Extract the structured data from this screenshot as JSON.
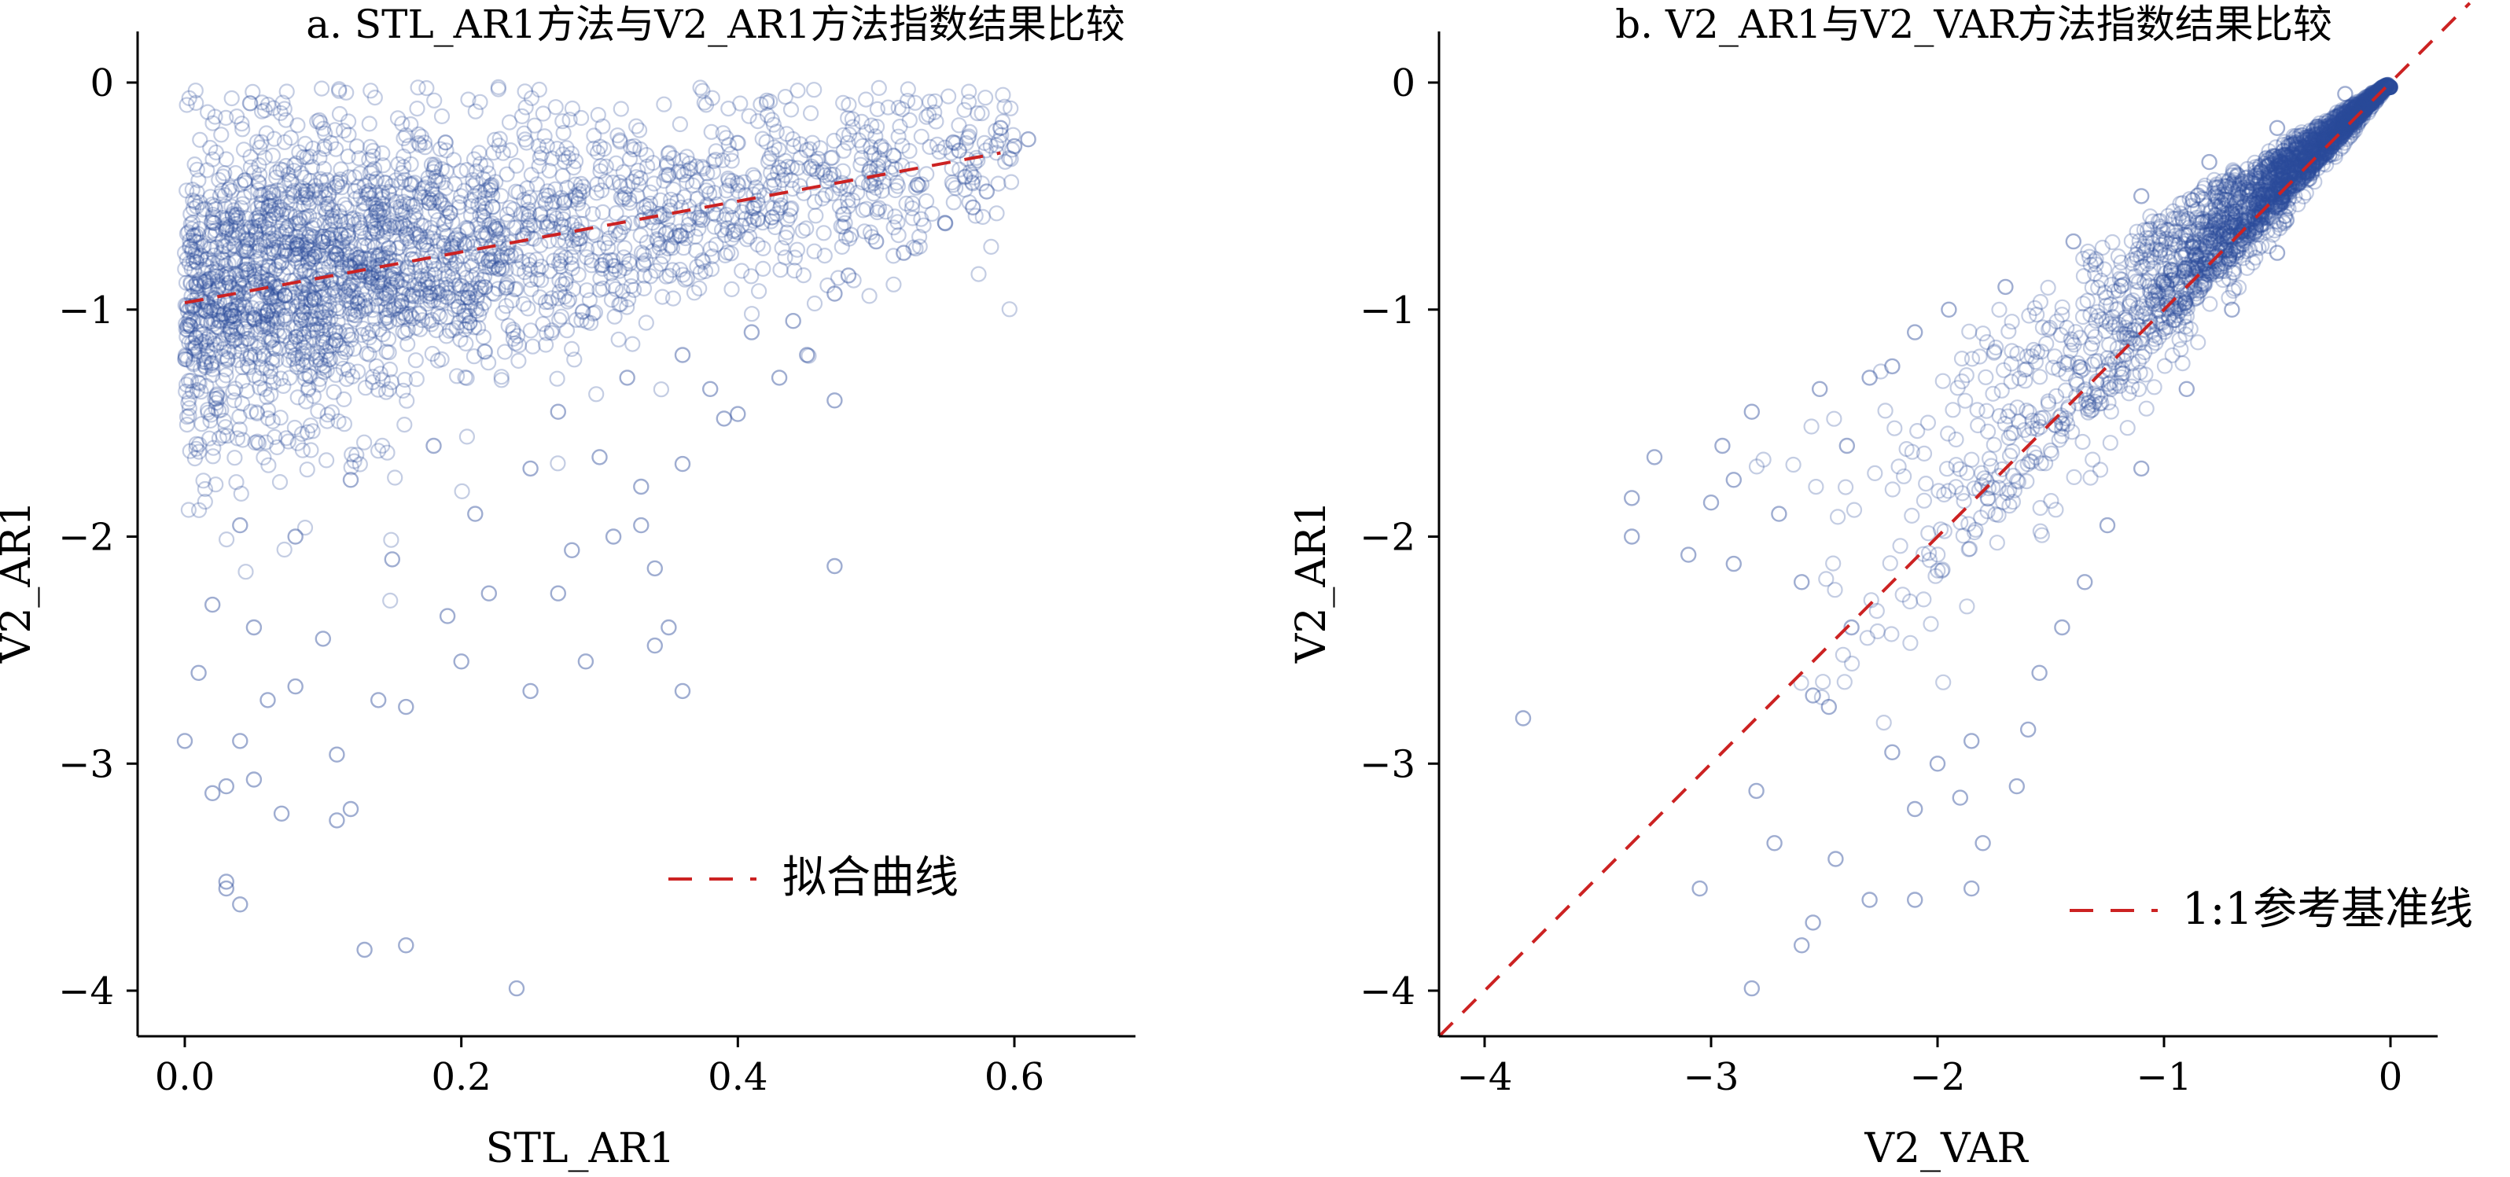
{
  "chart_data": [
    {
      "type": "scatter",
      "title": "a. STL_AR1方法与V2_AR1方法指数结果比较",
      "xlabel": "STL_AR1",
      "ylabel": "V2_AR1",
      "xlim": [
        -0.04,
        0.68
      ],
      "ylim": [
        -4.2,
        0.2
      ],
      "xticks": [
        0.0,
        0.2,
        0.4,
        0.6
      ],
      "xtick_labels": [
        "0.0",
        "0.2",
        "0.4",
        "0.6"
      ],
      "yticks": [
        0,
        -1,
        -2,
        -3,
        -4
      ],
      "ytick_labels": [
        "0",
        "−1",
        "−2",
        "−3",
        "−4"
      ],
      "grid": false,
      "legend_position": "lower-right",
      "marker": "hollow-circle",
      "marker_color": "#2a4a9a",
      "density_note": "dense cloud concentrated in x 0.0–0.45, y 0 to −1.6",
      "fit_line": {
        "label": "拟合曲线",
        "color": "#cc2222",
        "style": "dashed",
        "x": [
          0.0,
          0.59
        ],
        "y": [
          -0.97,
          -0.31
        ]
      },
      "points": [
        [
          0.03,
          -3.52
        ],
        [
          0.04,
          -3.62
        ],
        [
          0.03,
          -3.55
        ],
        [
          0.13,
          -3.82
        ],
        [
          0.16,
          -3.8
        ],
        [
          0.24,
          -3.99
        ],
        [
          0.02,
          -3.13
        ],
        [
          0.03,
          -3.1
        ],
        [
          0.05,
          -3.07
        ],
        [
          0.07,
          -3.22
        ],
        [
          0.11,
          -3.25
        ],
        [
          0.12,
          -3.2
        ],
        [
          0.04,
          -2.9
        ],
        [
          0.0,
          -2.9
        ],
        [
          0.11,
          -2.96
        ],
        [
          0.36,
          -2.68
        ],
        [
          0.25,
          -2.68
        ],
        [
          0.14,
          -2.72
        ],
        [
          0.01,
          -2.6
        ],
        [
          0.06,
          -2.72
        ],
        [
          0.08,
          -2.66
        ],
        [
          0.16,
          -2.75
        ],
        [
          0.2,
          -2.55
        ],
        [
          0.29,
          -2.55
        ],
        [
          0.34,
          -2.48
        ],
        [
          0.35,
          -2.4
        ],
        [
          0.27,
          -2.25
        ],
        [
          0.28,
          -2.06
        ],
        [
          0.31,
          -2.0
        ],
        [
          0.34,
          -2.14
        ],
        [
          0.47,
          -2.13
        ],
        [
          0.22,
          -2.25
        ],
        [
          0.19,
          -2.35
        ],
        [
          0.1,
          -2.45
        ],
        [
          0.05,
          -2.4
        ],
        [
          0.02,
          -2.3
        ],
        [
          0.33,
          -1.78
        ],
        [
          0.36,
          -1.68
        ],
        [
          0.33,
          -1.95
        ],
        [
          0.39,
          -1.48
        ],
        [
          0.4,
          -1.46
        ],
        [
          0.47,
          -1.4
        ],
        [
          0.3,
          -1.65
        ],
        [
          0.25,
          -1.7
        ],
        [
          0.21,
          -1.9
        ],
        [
          0.15,
          -2.1
        ],
        [
          0.08,
          -2.0
        ],
        [
          0.04,
          -1.95
        ],
        [
          0.43,
          -1.3
        ],
        [
          0.45,
          -1.2
        ],
        [
          0.38,
          -1.35
        ],
        [
          0.27,
          -1.45
        ],
        [
          0.18,
          -1.6
        ],
        [
          0.12,
          -1.75
        ],
        [
          0.5,
          -0.7
        ],
        [
          0.52,
          -0.75
        ],
        [
          0.55,
          -0.62
        ],
        [
          0.58,
          -0.48
        ],
        [
          0.57,
          -0.55
        ],
        [
          0.6,
          -0.28
        ],
        [
          0.61,
          -0.25
        ],
        [
          0.59,
          -0.2
        ],
        [
          0.56,
          -0.3
        ],
        [
          0.53,
          -0.45
        ],
        [
          0.47,
          -0.93
        ],
        [
          0.48,
          -0.85
        ],
        [
          0.44,
          -1.05
        ],
        [
          0.41,
          -1.1
        ],
        [
          0.36,
          -1.2
        ],
        [
          0.32,
          -1.3
        ]
      ]
    },
    {
      "type": "scatter",
      "title": "b. V2_AR1与V2_VAR方法指数结果比较",
      "xlabel": "V2_VAR",
      "ylabel": "V2_AR1",
      "xlim": [
        -4.15,
        0.35
      ],
      "ylim": [
        -4.2,
        0.2
      ],
      "xticks": [
        -4,
        -3,
        -2,
        -1,
        0
      ],
      "xtick_labels": [
        "−4",
        "−3",
        "−2",
        "−1",
        "0"
      ],
      "yticks": [
        0,
        -1,
        -2,
        -3,
        -4
      ],
      "ytick_labels": [
        "0",
        "−1",
        "−2",
        "−3",
        "−4"
      ],
      "grid": false,
      "legend_position": "lower-right",
      "marker": "hollow-circle",
      "marker_color": "#2a4a9a",
      "density_note": "dense wedge above the 1:1 line converging at (0,0)",
      "reference_line": {
        "label": "1:1参考基准线",
        "color": "#cc2222",
        "style": "dashed",
        "x": [
          -4.2,
          0.35
        ],
        "y": [
          -4.2,
          0.35
        ]
      },
      "points": [
        [
          -3.83,
          -2.8
        ],
        [
          -3.35,
          -1.83
        ],
        [
          -3.35,
          -2.0
        ],
        [
          -3.25,
          -1.65
        ],
        [
          -3.1,
          -2.08
        ],
        [
          -3.05,
          -3.55
        ],
        [
          -2.95,
          -1.6
        ],
        [
          -2.9,
          -1.75
        ],
        [
          -2.82,
          -1.45
        ],
        [
          -2.8,
          -3.12
        ],
        [
          -2.82,
          -3.99
        ],
        [
          -2.6,
          -3.8
        ],
        [
          -2.72,
          -3.35
        ],
        [
          -2.55,
          -3.7
        ],
        [
          -2.45,
          -3.42
        ],
        [
          -2.3,
          -3.6
        ],
        [
          -2.1,
          -3.6
        ],
        [
          -1.85,
          -3.55
        ],
        [
          -1.8,
          -3.35
        ],
        [
          -1.85,
          -2.9
        ],
        [
          -2.1,
          -3.2
        ],
        [
          -2.0,
          -3.0
        ],
        [
          -1.9,
          -3.15
        ],
        [
          -2.2,
          -2.95
        ],
        [
          -2.55,
          -2.7
        ],
        [
          -2.48,
          -2.75
        ],
        [
          -2.38,
          -2.4
        ],
        [
          -2.6,
          -2.2
        ],
        [
          -2.7,
          -1.9
        ],
        [
          -2.4,
          -1.6
        ],
        [
          -2.52,
          -1.35
        ],
        [
          -2.3,
          -1.3
        ],
        [
          -2.2,
          -1.25
        ],
        [
          -2.1,
          -1.1
        ],
        [
          -1.95,
          -1.0
        ],
        [
          -1.7,
          -0.9
        ],
        [
          -1.4,
          -0.7
        ],
        [
          -1.1,
          -0.5
        ],
        [
          -0.8,
          -0.35
        ],
        [
          -0.5,
          -0.2
        ],
        [
          -0.2,
          -0.05
        ],
        [
          -1.6,
          -2.85
        ],
        [
          -1.65,
          -3.1
        ],
        [
          -1.55,
          -2.6
        ],
        [
          -1.45,
          -2.4
        ],
        [
          -1.35,
          -2.2
        ],
        [
          -1.25,
          -1.95
        ],
        [
          -1.1,
          -1.7
        ],
        [
          -0.9,
          -1.35
        ],
        [
          -0.7,
          -1.0
        ],
        [
          -0.5,
          -0.75
        ],
        [
          -3.0,
          -1.85
        ],
        [
          -2.9,
          -2.12
        ]
      ]
    }
  ]
}
